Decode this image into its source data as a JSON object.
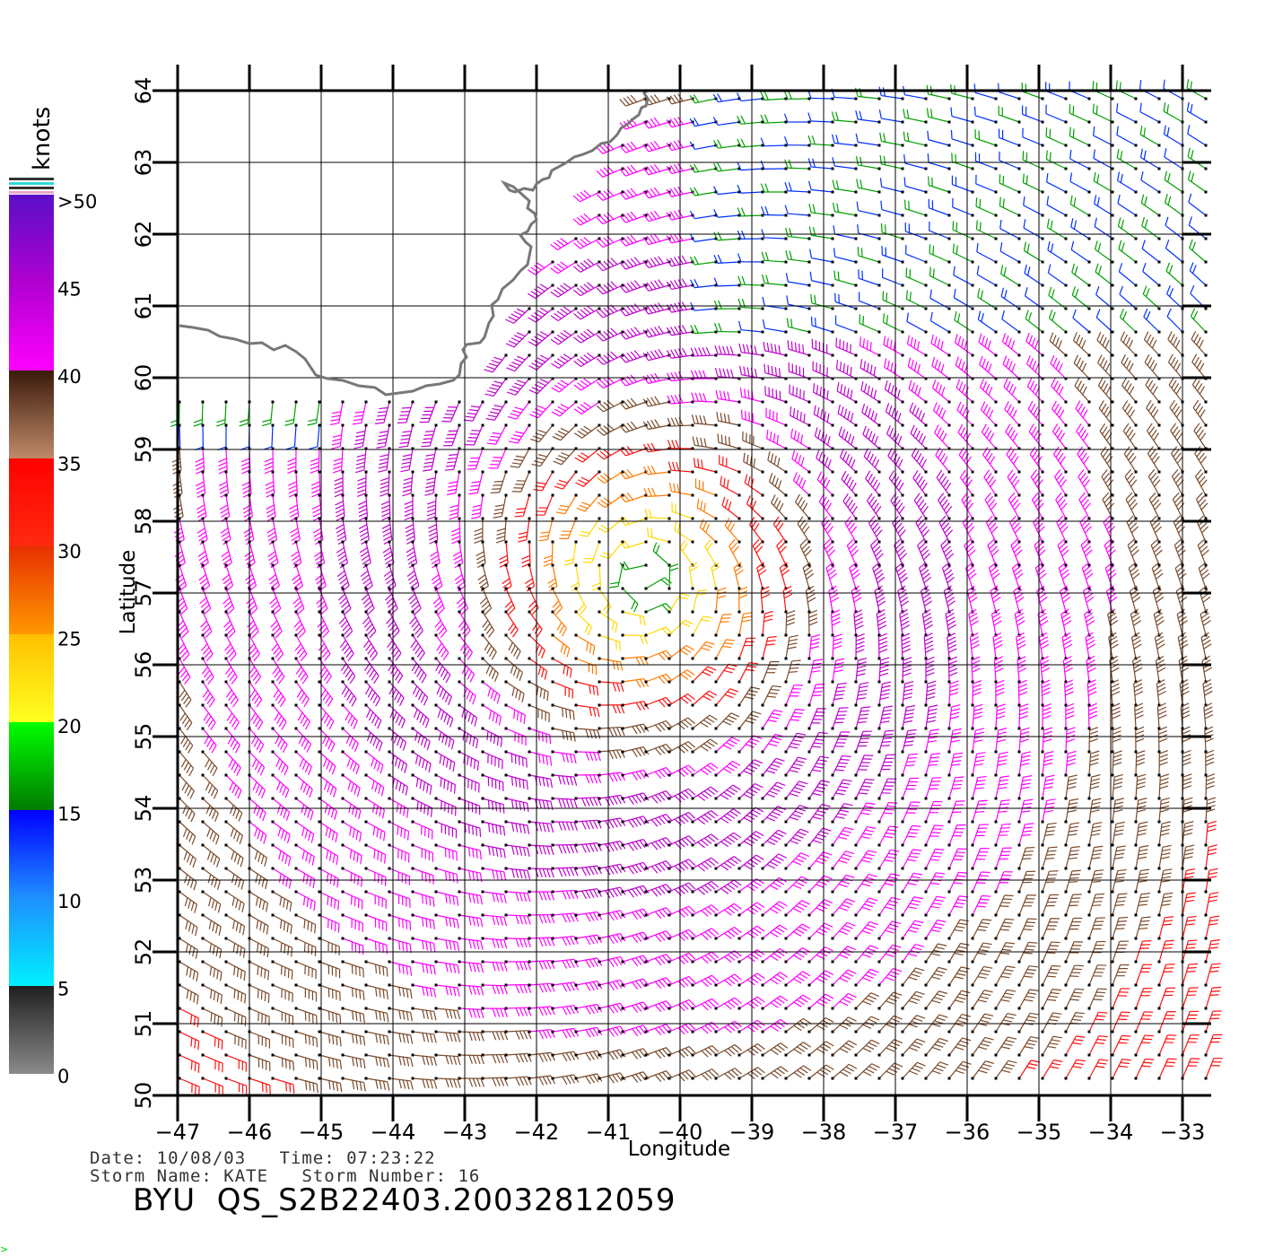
{
  "map": {
    "x_axis": {
      "label": "Longitude",
      "ticks": [
        "−47",
        "−46",
        "−45",
        "−44",
        "−43",
        "−42",
        "−41",
        "−40",
        "−39",
        "−38",
        "−37",
        "−36",
        "−35",
        "−34",
        "−33"
      ]
    },
    "y_axis": {
      "label": "Latitude",
      "ticks": [
        "50",
        "51",
        "52",
        "53",
        "54",
        "55",
        "56",
        "57",
        "58",
        "59",
        "60",
        "61",
        "62",
        "63",
        "64"
      ]
    },
    "lon_range": [
      -47,
      -33
    ],
    "lat_range": [
      50,
      64
    ],
    "grid": true,
    "feature": "wind barbs (QuikSCAT scatterometer winds)",
    "storm_center": {
      "lon": -40.5,
      "lat": 57.2
    },
    "coastline": "Greenland (upper-left)"
  },
  "legend": {
    "title": "knots",
    "labels": [
      ">50",
      "45",
      "40",
      "35",
      "30",
      "25",
      "20",
      "15",
      "10",
      "5",
      "0"
    ],
    "colors": {
      "gt50": "#6a0dcc",
      "45": "#c000d0",
      "40": "#ff00ff",
      "35_40": "#7a4a2a",
      "30_35": "#ff1010",
      "25_30": "#ff7a00",
      "20_25": "#ffd800",
      "15_20": "#00a000",
      "10_15": "#0030ff",
      "5_10": "#00d8ff",
      "0_5": "#555555"
    }
  },
  "footer": {
    "date_line": "Date: 10/08/03   Time: 07:23:22",
    "storm_line": "Storm Name: KATE   Storm Number: 16",
    "product_id": "BYU  QS_S2B22403.20032812059"
  }
}
